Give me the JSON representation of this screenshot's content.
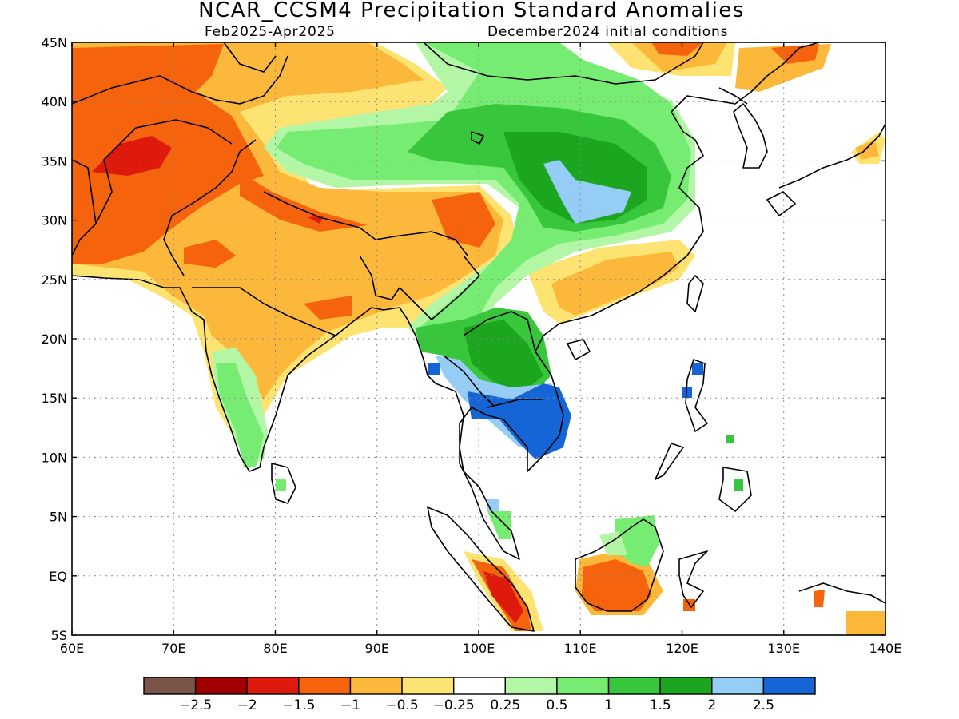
{
  "title": "NCAR_CCSM4 Precipitation Standard Anomalies",
  "subtitle_left": "Feb2025-Apr2025",
  "subtitle_right": "December2024 initial conditions",
  "map": {
    "lon_range": [
      60,
      140
    ],
    "lat_range": [
      -5,
      45
    ],
    "x_ticks": [
      {
        "value": 60,
        "label": "60E"
      },
      {
        "value": 70,
        "label": "70E"
      },
      {
        "value": 80,
        "label": "80E"
      },
      {
        "value": 90,
        "label": "90E"
      },
      {
        "value": 100,
        "label": "100E"
      },
      {
        "value": 110,
        "label": "110E"
      },
      {
        "value": 120,
        "label": "120E"
      },
      {
        "value": 130,
        "label": "130E"
      },
      {
        "value": 140,
        "label": "140E"
      }
    ],
    "y_ticks": [
      {
        "value": 45,
        "label": "45N"
      },
      {
        "value": 40,
        "label": "40N"
      },
      {
        "value": 35,
        "label": "35N"
      },
      {
        "value": 30,
        "label": "30N"
      },
      {
        "value": 25,
        "label": "25N"
      },
      {
        "value": 20,
        "label": "20N"
      },
      {
        "value": 15,
        "label": "15N"
      },
      {
        "value": 10,
        "label": "10N"
      },
      {
        "value": 5,
        "label": "5N"
      },
      {
        "value": 0,
        "label": "EQ"
      },
      {
        "value": -5,
        "label": "5S"
      }
    ],
    "grid": "dotted"
  },
  "colorbar": {
    "colors": [
      "#7a5448",
      "#a00000",
      "#dd1a0c",
      "#f5640c",
      "#fbb83a",
      "#fde372",
      "#ffffff",
      "#b3f7a6",
      "#77ec72",
      "#38c63c",
      "#1ca51e",
      "#95cdf6",
      "#1565d6"
    ],
    "labels": [
      "-2.5",
      "-2",
      "-1.5",
      "-1",
      "-0.5",
      "-0.25",
      "0.25",
      "0.5",
      "1",
      "1.5",
      "2",
      "2.5"
    ]
  }
}
